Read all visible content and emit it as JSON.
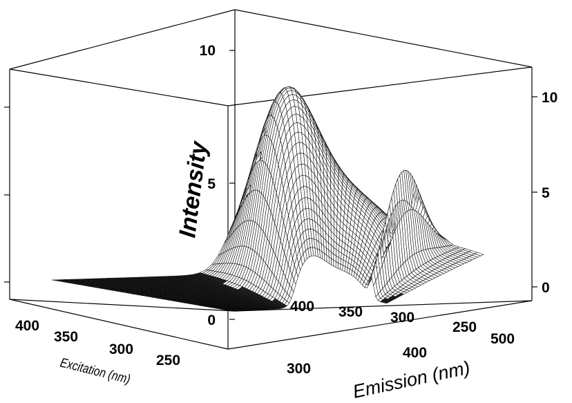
{
  "chart_data": {
    "type": "surface",
    "title": "",
    "zlabel": "Intensity",
    "xlabel": "Emission (nm)",
    "ylabel": "Excitation (nm)",
    "z_ticks_left": [
      "10",
      "5",
      "0"
    ],
    "z_ticks_right": [
      "10",
      "5",
      "0"
    ],
    "emission_ticks": [
      "300",
      "400",
      "500"
    ],
    "excitation_ticks_front": [
      "400",
      "350",
      "300",
      "250"
    ],
    "excitation_ticks_back": [
      "400",
      "350",
      "300",
      "250"
    ],
    "zlim": [
      0,
      10
    ],
    "peaks": [
      {
        "excitation": 340,
        "emission": 410,
        "intensity": 9.2
      },
      {
        "excitation": 230,
        "emission": 470,
        "intensity": 5.1
      }
    ],
    "grid": false
  }
}
